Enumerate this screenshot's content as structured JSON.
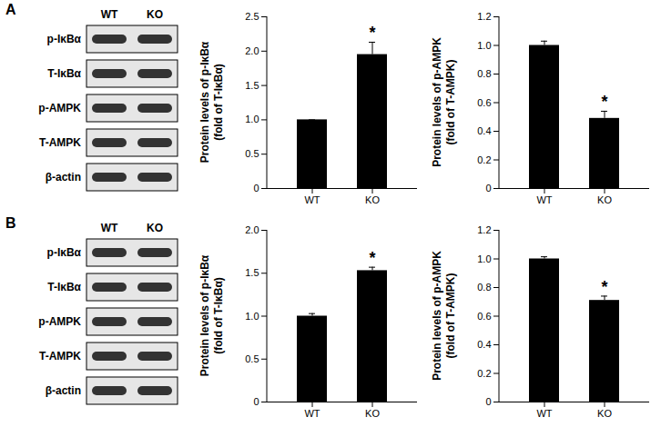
{
  "chart_data": [
    {
      "type": "bar",
      "ylabel": [
        "Protein levels of p-IκBα",
        "(fold of T-IκBα)"
      ],
      "categories": [
        "WT",
        "KO"
      ],
      "values": [
        1.0,
        1.95
      ],
      "errors": [
        0,
        0.18
      ],
      "color": "#000000",
      "ylim": [
        0,
        2.5
      ],
      "yticks": [
        0,
        0.5,
        {
          "value": 1,
          "label": "1.0"
        },
        1.5,
        {
          "value": 2,
          "label": "2.0"
        },
        2.5
      ],
      "annotations": [
        {
          "category": "KO",
          "text": "*"
        }
      ]
    },
    {
      "type": "bar",
      "ylabel": [
        "Protein levels of p-AMPK",
        "(fold of T-AMPK)"
      ],
      "categories": [
        "WT",
        "KO"
      ],
      "values": [
        1.0,
        0.49
      ],
      "errors": [
        0.03,
        0.05
      ],
      "color": "#000000",
      "ylim": [
        0,
        1.2
      ],
      "yticks": [
        0,
        0.2,
        0.4,
        0.6,
        0.8,
        {
          "value": 1,
          "label": "1.0"
        },
        1.2
      ],
      "annotations": [
        {
          "category": "KO",
          "text": "*"
        }
      ]
    },
    {
      "type": "bar",
      "ylabel": [
        "Protein levels of p-IκBα",
        "(fold of T-IκBα)"
      ],
      "categories": [
        "WT",
        "KO"
      ],
      "values": [
        1.0,
        1.53
      ],
      "errors": [
        0.03,
        0.04
      ],
      "color": "#000000",
      "ylim": [
        0,
        2.0
      ],
      "yticks": [
        0,
        0.5,
        {
          "value": 1,
          "label": "1.0"
        },
        1.5,
        {
          "value": 2,
          "label": "2.0"
        }
      ],
      "annotations": [
        {
          "category": "KO",
          "text": "*"
        }
      ]
    },
    {
      "type": "bar",
      "ylabel": [
        "Protein levels of p-AMPK",
        "(fold of T-AMPK)"
      ],
      "categories": [
        "WT",
        "KO"
      ],
      "values": [
        1.0,
        0.71
      ],
      "errors": [
        0.015,
        0.03
      ],
      "color": "#000000",
      "ylim": [
        0,
        1.2
      ],
      "yticks": [
        0,
        0.2,
        0.4,
        0.6,
        0.8,
        {
          "value": 1,
          "label": "1.0"
        },
        1.2
      ],
      "annotations": [
        {
          "category": "KO",
          "text": "*"
        }
      ]
    }
  ],
  "blots": [
    {
      "panel": "A",
      "lanes": [
        "WT",
        "KO"
      ],
      "rows": [
        "p-IκBα",
        "T-IκBα",
        "p-AMPK",
        "T-AMPK",
        "β-actin"
      ]
    },
    {
      "panel": "B",
      "lanes": [
        "WT",
        "KO"
      ],
      "rows": [
        "p-IκBα",
        "T-IκBα",
        "p-AMPK",
        "T-AMPK",
        "β-actin"
      ]
    }
  ]
}
